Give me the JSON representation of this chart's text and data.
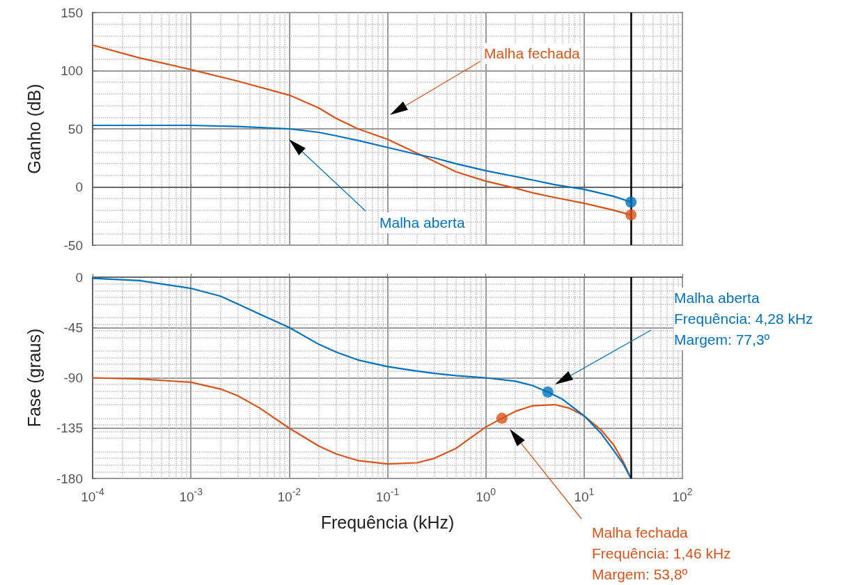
{
  "chart_data": [
    {
      "type": "line",
      "ylabel": "Ganho (dB)",
      "xlim": [
        0.0001,
        100
      ],
      "ylim": [
        -50,
        150
      ],
      "xticks": [
        0.0001,
        0.001,
        0.01,
        0.1,
        1,
        10,
        100
      ],
      "yticks": [
        -50,
        0,
        50,
        100,
        150
      ],
      "log": "x",
      "grid": true,
      "tick_labels": "y",
      "series": [
        {
          "color": "#d95319",
          "x": [
            0.0001,
            0.0003,
            0.001,
            0.003,
            0.01,
            0.02,
            0.03,
            0.05,
            0.1,
            0.2,
            0.3,
            0.5,
            1,
            2,
            3,
            5,
            10,
            20,
            30
          ],
          "values": [
            122,
            111,
            101,
            91,
            79,
            68,
            59,
            50,
            41,
            29,
            22,
            13,
            5,
            -1,
            -5,
            -9,
            -14,
            -20,
            -24
          ]
        },
        {
          "color": "#0072bd",
          "x": [
            0.0001,
            0.001,
            0.003,
            0.01,
            0.02,
            0.03,
            0.05,
            0.1,
            0.2,
            0.3,
            0.5,
            1,
            2,
            3,
            5,
            10,
            20,
            30
          ],
          "values": [
            53,
            53,
            52,
            50,
            47,
            44,
            40,
            34,
            28,
            25,
            20,
            14,
            9,
            6,
            2,
            -2,
            -8,
            -13
          ]
        },
        {
          "type": "scatter",
          "color": "#d95319",
          "x": [
            30
          ],
          "values": [
            -24
          ]
        },
        {
          "type": "scatter",
          "color": "#0072bd",
          "x": [
            30
          ],
          "values": [
            -13
          ]
        }
      ],
      "ref_lines": [
        {
          "axis": "x",
          "value": 30,
          "color": "#000000"
        }
      ],
      "annotations": [
        "Malha fechada",
        "Malha aberta"
      ]
    },
    {
      "type": "line",
      "xlabel": "Frequência (kHz)",
      "ylabel": "Fase (graus)",
      "xlim": [
        0.0001,
        100
      ],
      "ylim": [
        -180,
        0
      ],
      "xticks": [
        {
          "value": 0.0001,
          "label": "10$^{-4}$"
        },
        {
          "value": 0.001,
          "label": "10$^{-3}$"
        },
        {
          "value": 0.01,
          "label": "10$^{-2}$"
        },
        {
          "value": 0.1,
          "label": "10$^{-1}$"
        },
        {
          "value": 1,
          "label": "10$^{0}$"
        },
        {
          "value": 10,
          "label": "10$^{1}$"
        },
        {
          "value": 100,
          "label": "10$^{2}$"
        }
      ],
      "yticks": [
        -180,
        -135,
        -90,
        -45,
        0
      ],
      "log": "x",
      "grid": true,
      "series": [
        {
          "color": "#d95319",
          "x": [
            0.0001,
            0.0003,
            0.001,
            0.002,
            0.003,
            0.005,
            0.01,
            0.02,
            0.03,
            0.05,
            0.1,
            0.2,
            0.3,
            0.5,
            1,
            1.46,
            2,
            3,
            5,
            7,
            10,
            15,
            20,
            25,
            30
          ],
          "values": [
            -90,
            -91,
            -94,
            -100,
            -106,
            -117,
            -135,
            -151,
            -158,
            -164,
            -167,
            -166,
            -162,
            -153,
            -134,
            -126.2,
            -120,
            -115,
            -114,
            -117,
            -124,
            -137,
            -150,
            -165,
            -180
          ]
        },
        {
          "color": "#0072bd",
          "x": [
            0.0001,
            0.0003,
            0.001,
            0.002,
            0.003,
            0.005,
            0.01,
            0.02,
            0.03,
            0.05,
            0.1,
            0.2,
            0.3,
            0.5,
            1,
            2,
            3,
            4.28,
            6,
            10,
            15,
            20,
            25,
            30
          ],
          "values": [
            -1,
            -3,
            -10,
            -17,
            -24,
            -33,
            -45,
            -60,
            -67,
            -74,
            -80,
            -84,
            -86,
            -88,
            -90,
            -93,
            -97,
            -102.7,
            -109,
            -124,
            -140,
            -155,
            -167,
            -180
          ]
        },
        {
          "type": "scatter",
          "color": "#d95319",
          "x": [
            1.46
          ],
          "values": [
            -126.2
          ]
        },
        {
          "type": "scatter",
          "color": "#0072bd",
          "x": [
            4.28
          ],
          "values": [
            -102.7
          ]
        }
      ],
      "ref_lines": [
        {
          "axis": "x",
          "value": 30,
          "color": "#000000"
        }
      ],
      "annotations": [
        "Malha fechada\nFrequência: 1,46 kHz\nMargem: 53,8º",
        "Malha aberta\nFrequência: 4,28 kHz\nMargem: 77,3º"
      ]
    }
  ]
}
